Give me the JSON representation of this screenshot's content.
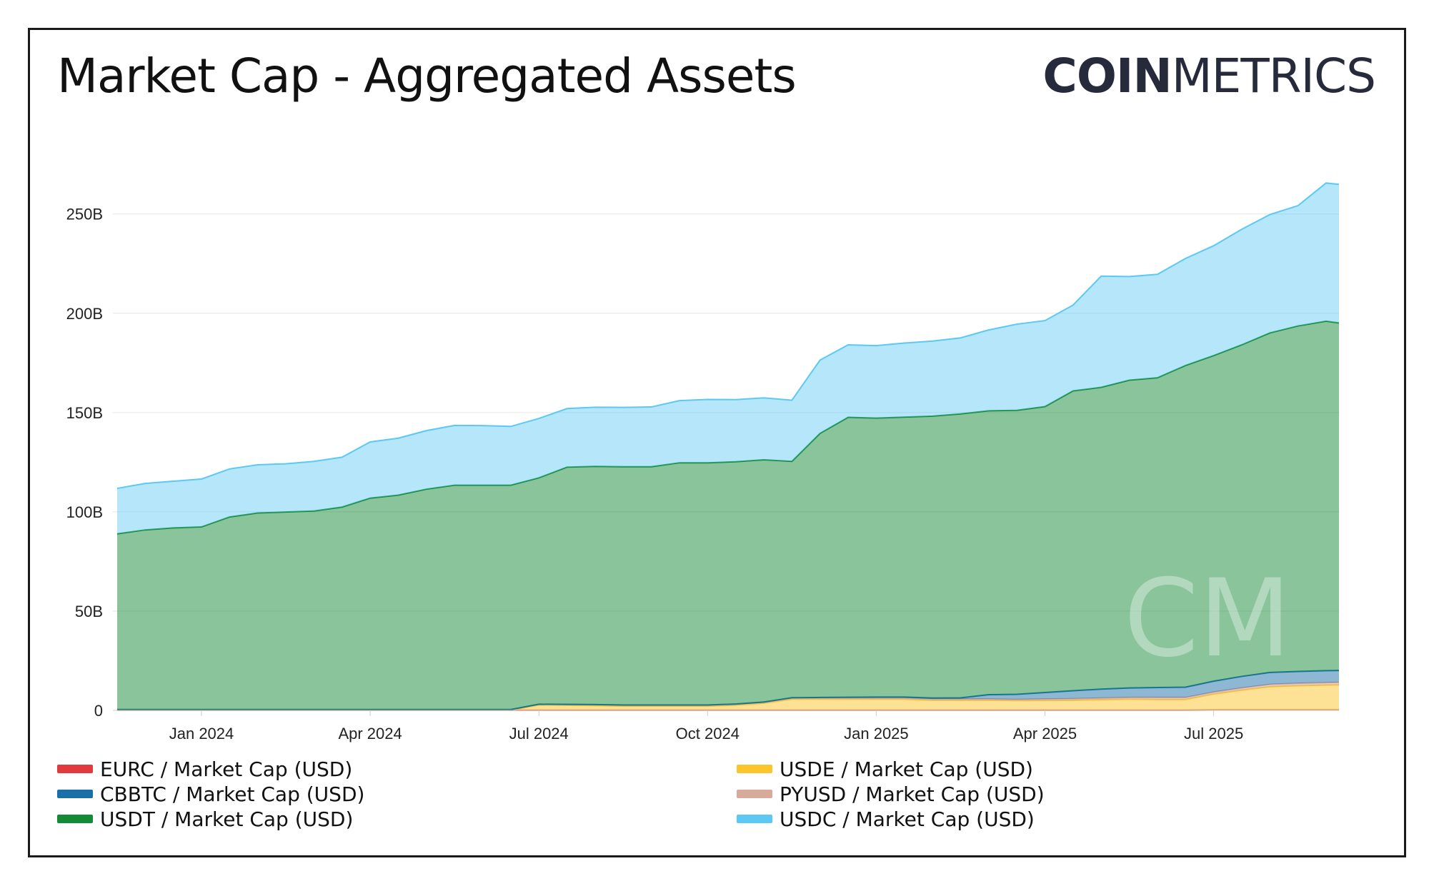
{
  "title": "Market Cap - Aggregated Assets",
  "logo": {
    "bold": "COIN",
    "light": "METRICS"
  },
  "watermark": "CM",
  "chart_data": {
    "type": "area",
    "stacked": true,
    "title": "Market Cap - Aggregated Assets",
    "x_ticks": [
      "Jan 2024",
      "Apr 2024",
      "Jul 2024",
      "Oct 2024",
      "Jan 2025",
      "Apr 2025",
      "Jul 2025"
    ],
    "y_ticks": [
      "0",
      "50B",
      "100B",
      "150B",
      "200B",
      "250B"
    ],
    "ylim": [
      0,
      265
    ],
    "y_unit": "B USD",
    "x_months": [
      -1.5,
      -1,
      -0.5,
      0,
      0.5,
      1,
      1.5,
      2,
      2.5,
      3,
      3.5,
      4,
      4.5,
      5,
      5.5,
      6,
      6.5,
      7,
      7.5,
      8,
      8.5,
      9,
      9.5,
      10,
      10.5,
      11,
      11.5,
      12,
      12.5,
      13,
      13.5,
      14,
      14.5,
      15,
      15.5,
      16,
      16.5,
      17,
      17.5,
      18,
      18.5,
      19,
      19.5,
      20,
      20.3
    ],
    "series": [
      {
        "name": "EURC / Market Cap (USD)",
        "color": "#e03a3e",
        "values": [
          0.1,
          0.1,
          0.1,
          0.1,
          0.1,
          0.1,
          0.1,
          0.1,
          0.1,
          0.1,
          0.1,
          0.1,
          0.1,
          0.1,
          0.1,
          0.1,
          0.1,
          0.1,
          0.1,
          0.1,
          0.1,
          0.1,
          0.1,
          0.1,
          0.1,
          0.1,
          0.1,
          0.1,
          0.1,
          0.1,
          0.1,
          0.1,
          0.1,
          0.1,
          0.1,
          0.1,
          0.1,
          0.1,
          0.1,
          0.2,
          0.2,
          0.2,
          0.2,
          0.2,
          0.2
        ]
      },
      {
        "name": "USDE / Market Cap (USD)",
        "color": "#fcc52c",
        "values": [
          0,
          0,
          0,
          0,
          0,
          0,
          0,
          0,
          0,
          0,
          0,
          0,
          0,
          0,
          0,
          2.6,
          2.5,
          2.3,
          2.0,
          2.0,
          2.0,
          2.0,
          2.5,
          3.5,
          5.5,
          5.5,
          5.5,
          5.5,
          5.5,
          5.0,
          5.0,
          5.0,
          4.8,
          4.9,
          5.0,
          5.3,
          5.5,
          5.4,
          5.4,
          8.0,
          10.0,
          11.7,
          12.2,
          12.5,
          12.6
        ]
      },
      {
        "name": "PYUSD / Market Cap (USD)",
        "color": "#d6ab9c",
        "values": [
          0.3,
          0.3,
          0.3,
          0.3,
          0.3,
          0.3,
          0.3,
          0.3,
          0.3,
          0.3,
          0.3,
          0.3,
          0.3,
          0.3,
          0.3,
          0.4,
          0.4,
          0.5,
          0.6,
          0.6,
          0.6,
          0.6,
          0.6,
          0.6,
          0.6,
          0.6,
          0.6,
          0.6,
          0.6,
          0.6,
          0.6,
          0.6,
          0.6,
          0.7,
          0.8,
          0.8,
          0.9,
          1.0,
          1.0,
          1.0,
          1.1,
          1.2,
          1.2,
          1.3,
          1.3
        ]
      },
      {
        "name": "CBBTC / Market Cap (USD)",
        "color": "#1b6fa8",
        "values": [
          0,
          0,
          0,
          0,
          0,
          0,
          0,
          0,
          0,
          0,
          0,
          0,
          0,
          0,
          0,
          0,
          0,
          0,
          0,
          0,
          0,
          0,
          0,
          0,
          0.2,
          0.3,
          0.4,
          0.5,
          0.5,
          0.5,
          0.6,
          2.2,
          2.6,
          3.3,
          4.0,
          4.5,
          4.8,
          5.0,
          5.2,
          5.5,
          5.8,
          6.0,
          6.0,
          6.0,
          6.0
        ]
      },
      {
        "name": "USDT / Market Cap (USD)",
        "color": "#138a36",
        "values": [
          88.5,
          90.5,
          91.5,
          92,
          97,
          99,
          99.5,
          100,
          102,
          106.5,
          108,
          111,
          113,
          113,
          113,
          114,
          119.5,
          120,
          120,
          120,
          122,
          122,
          122,
          122,
          119,
          133,
          141,
          140.5,
          141,
          142,
          143,
          143,
          143,
          144,
          151,
          152,
          155,
          156,
          162,
          164,
          167,
          171,
          174,
          176,
          175
        ]
      },
      {
        "name": "USDC / Market Cap (USD)",
        "color": "#5bc8f5",
        "values": [
          22.9,
          23.4,
          23.5,
          24.1,
          24.2,
          24.3,
          24.3,
          25.0,
          25.1,
          28.3,
          28.7,
          29.5,
          30.1,
          30.0,
          29.6,
          29.9,
          29.5,
          29.8,
          29.9,
          30.1,
          31.3,
          31.9,
          31.3,
          31.2,
          30.8,
          36.9,
          36.5,
          36.5,
          37.3,
          37.8,
          38.3,
          40.7,
          43.4,
          43.3,
          43.2,
          56.0,
          52.2,
          52.1,
          53.9,
          55.3,
          58.2,
          59.6,
          60.6,
          69.6,
          69.8
        ]
      }
    ]
  },
  "legend": [
    {
      "label": "EURC / Market Cap (USD)",
      "color": "#e03a3e"
    },
    {
      "label": "CBBTC / Market Cap (USD)",
      "color": "#1b6fa8"
    },
    {
      "label": "USDT / Market Cap (USD)",
      "color": "#138a36"
    },
    {
      "label": "USDE / Market Cap (USD)",
      "color": "#fcc52c"
    },
    {
      "label": "PYUSD / Market Cap (USD)",
      "color": "#d6ab9c"
    },
    {
      "label": "USDC / Market Cap (USD)",
      "color": "#5bc8f5"
    }
  ]
}
